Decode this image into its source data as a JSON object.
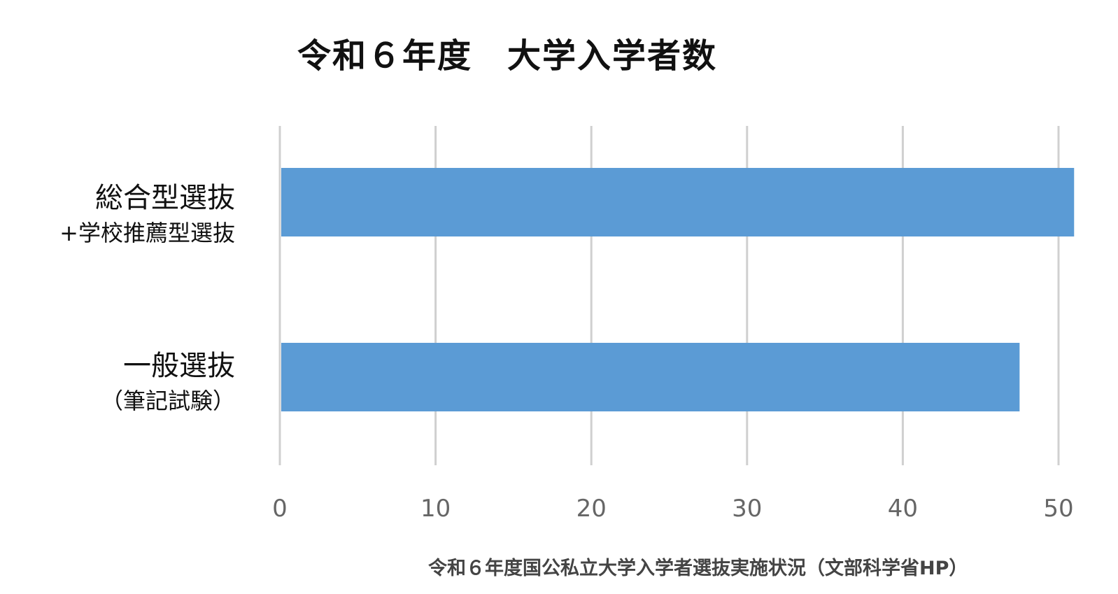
{
  "chart_data": {
    "type": "bar",
    "orientation": "horizontal",
    "title": "令和６年度　大学入学者数",
    "categories": [
      {
        "main": "総合型選抜",
        "sub": "+学校推薦型選抜"
      },
      {
        "main": "一般選抜",
        "sub": "（筆記試験）"
      }
    ],
    "values": [
      51,
      47.5
    ],
    "xlim": [
      0,
      50
    ],
    "xticks": [
      "0",
      "10",
      "20",
      "30",
      "40",
      "50"
    ],
    "grid": true,
    "bar_color": "#5b9bd5",
    "source": "令和６年度国公私立大学入学者選抜実施状況（文部科学省HP）"
  }
}
